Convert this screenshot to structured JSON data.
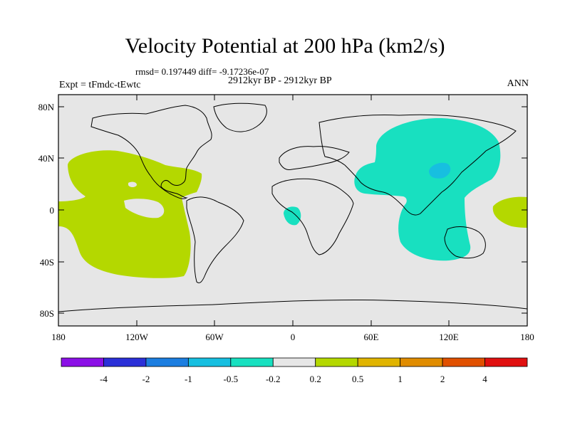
{
  "title": "Velocity Potential at 200 hPa (km2/s)",
  "stats_line": "rmsd= 0.197449 diff= -9.17236e-07",
  "period": "2912kyr BP - 2912kyr BP",
  "experiment": "Expt = tFmdc-tEwtc",
  "season": "ANN",
  "lat_ticks": [
    "80N",
    "40N",
    "0",
    "40S",
    "80S"
  ],
  "lon_ticks": [
    "180",
    "120W",
    "60W",
    "0",
    "60E",
    "120E",
    "180"
  ],
  "colorbar": {
    "colors": [
      "#8b10e6",
      "#2b30d8",
      "#1c7ee0",
      "#17bfe0",
      "#18e0c0",
      "#e6e6e6",
      "#b4d800",
      "#e0b400",
      "#e08c00",
      "#e05000",
      "#e01010"
    ],
    "labels": [
      "-4",
      "-2",
      "-1",
      "-0.5",
      "-0.2",
      "0.2",
      "0.5",
      "1",
      "2",
      "4"
    ]
  },
  "colors": {
    "ocean_background": "#e6e6e6",
    "positive_fill": "#b4d800",
    "negative_fill": "#18e0c0",
    "strong_negative_fill": "#17bfe0"
  }
}
